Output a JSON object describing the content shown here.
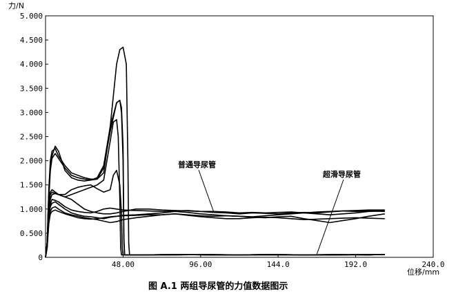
{
  "chart_data": {
    "type": "line",
    "ylabel": "力/N",
    "xlabel": "位移/mm",
    "xlim": [
      0,
      240
    ],
    "ylim": [
      0,
      5
    ],
    "xticks": [
      "48.00",
      "96.00",
      "144.0",
      "192.0",
      "240.0"
    ],
    "yticks": [
      "0",
      "0.500",
      "1.000",
      "1.500",
      "2.000",
      "2.500",
      "3.000",
      "3.500",
      "4.000",
      "4.500",
      "5.000"
    ],
    "annotations": [
      {
        "text": "普通导尿管",
        "target": [
          104,
          0.95
        ]
      },
      {
        "text": "超滑导尿管",
        "target": [
          168,
          0.07
        ]
      }
    ],
    "caption": "图 A.1 两组导尿管的力值数据图示",
    "series": [
      {
        "x": [
          0,
          1,
          2,
          3,
          4,
          6,
          8,
          12,
          16,
          20,
          24,
          28,
          32,
          36,
          40,
          44,
          46,
          48,
          50,
          51,
          51.5,
          52,
          60,
          80,
          100,
          120,
          140,
          160,
          180,
          200,
          210
        ],
        "y": [
          0,
          0.3,
          1.4,
          2.0,
          2.2,
          2.25,
          2.1,
          1.9,
          1.75,
          1.7,
          1.65,
          1.62,
          1.62,
          1.75,
          2.7,
          4.0,
          4.3,
          4.35,
          4.0,
          2.0,
          0.3,
          0.05,
          0.05,
          0.06,
          0.05,
          0.05,
          0.06,
          0.05,
          0.05,
          0.06,
          0.06
        ]
      },
      {
        "x": [
          0,
          1,
          2,
          3,
          4,
          6,
          8,
          12,
          16,
          20,
          24,
          28,
          32,
          36,
          40,
          44,
          46,
          47,
          48,
          48.5,
          49,
          60,
          80,
          100,
          120,
          140,
          160,
          180,
          200,
          210
        ],
        "y": [
          0,
          0.3,
          1.3,
          1.9,
          2.1,
          2.3,
          2.2,
          1.8,
          1.65,
          1.6,
          1.58,
          1.6,
          1.65,
          1.9,
          2.7,
          3.2,
          3.25,
          3.1,
          2.3,
          0.4,
          0.05,
          0.05,
          0.06,
          0.05,
          0.05,
          0.06,
          0.05,
          0.05,
          0.06,
          0.06
        ]
      },
      {
        "x": [
          0,
          1,
          2,
          3,
          4,
          6,
          8,
          12,
          16,
          20,
          24,
          28,
          32,
          36,
          40,
          44,
          46,
          47,
          48,
          48.5,
          49,
          60,
          80,
          100,
          120,
          140,
          160,
          180,
          200,
          210
        ],
        "y": [
          0,
          0.3,
          1.2,
          1.8,
          2.05,
          2.15,
          2.05,
          1.85,
          1.7,
          1.65,
          1.62,
          1.6,
          1.62,
          1.85,
          2.6,
          3.2,
          3.25,
          3.0,
          2.0,
          0.3,
          0.05,
          0.05,
          0.05,
          0.06,
          0.05,
          0.05,
          0.05,
          0.06,
          0.05,
          0.06
        ]
      },
      {
        "x": [
          0,
          1,
          2,
          3,
          4,
          8,
          12,
          16,
          20,
          24,
          28,
          32,
          36,
          40,
          42,
          44,
          45,
          46,
          46.5,
          47,
          60,
          80,
          100,
          120,
          140,
          160,
          180,
          200,
          210
        ],
        "y": [
          0,
          0.3,
          1.1,
          1.35,
          1.4,
          1.3,
          1.25,
          1.3,
          1.35,
          1.4,
          1.45,
          1.5,
          1.6,
          2.4,
          2.8,
          2.85,
          2.5,
          1.2,
          0.2,
          0.05,
          0.05,
          0.05,
          0.06,
          0.05,
          0.05,
          0.05,
          0.06,
          0.05,
          0.06
        ]
      },
      {
        "x": [
          0,
          1,
          2,
          3,
          4,
          8,
          12,
          16,
          20,
          24,
          28,
          32,
          36,
          40,
          42,
          44,
          46,
          47,
          47.5,
          48,
          60,
          80,
          100,
          120,
          140,
          160,
          180,
          200,
          210
        ],
        "y": [
          0,
          0.3,
          1.0,
          1.3,
          1.35,
          1.3,
          1.3,
          1.4,
          1.45,
          1.48,
          1.5,
          1.42,
          1.35,
          1.4,
          1.7,
          1.8,
          1.5,
          0.9,
          0.2,
          0.05,
          0.05,
          0.06,
          0.05,
          0.05,
          0.06,
          0.05,
          0.05,
          0.05,
          0.06
        ]
      },
      {
        "x": [
          0,
          1,
          2,
          3,
          4,
          6,
          8,
          12,
          16,
          20,
          24,
          28,
          32,
          36,
          40,
          44,
          48,
          56,
          64,
          72,
          80,
          88,
          96,
          104,
          112,
          120,
          128,
          136,
          144,
          152,
          160,
          168,
          176,
          184,
          192,
          200,
          210
        ],
        "y": [
          0,
          0.3,
          0.9,
          1.2,
          1.3,
          1.32,
          1.3,
          1.25,
          1.2,
          1.1,
          1.0,
          0.95,
          0.92,
          0.9,
          0.9,
          0.92,
          0.95,
          1.0,
          1.0,
          0.98,
          0.97,
          0.96,
          0.95,
          0.95,
          0.94,
          0.92,
          0.93,
          0.92,
          0.93,
          0.94,
          0.92,
          0.94,
          0.95,
          0.96,
          0.97,
          0.98,
          0.98
        ]
      },
      {
        "x": [
          0,
          1,
          2,
          3,
          4,
          6,
          8,
          12,
          16,
          20,
          24,
          28,
          32,
          36,
          40,
          44,
          48,
          56,
          64,
          72,
          80,
          88,
          96,
          104,
          112,
          120,
          128,
          136,
          144,
          152,
          160,
          168,
          176,
          184,
          192,
          200,
          210
        ],
        "y": [
          0,
          0.3,
          0.9,
          1.1,
          1.2,
          1.18,
          1.15,
          1.05,
          0.98,
          0.95,
          0.93,
          0.92,
          0.95,
          1.0,
          1.02,
          1.0,
          0.98,
          0.97,
          0.96,
          0.95,
          0.96,
          0.97,
          0.95,
          0.93,
          0.92,
          0.9,
          0.92,
          0.91,
          0.9,
          0.92,
          0.93,
          0.92,
          0.94,
          0.96,
          0.95,
          0.96,
          0.95
        ]
      },
      {
        "x": [
          0,
          1,
          2,
          3,
          4,
          6,
          8,
          12,
          16,
          20,
          24,
          28,
          32,
          36,
          40,
          44,
          48,
          56,
          64,
          72,
          80,
          88,
          96,
          104,
          112,
          120,
          128,
          136,
          144,
          152,
          160,
          168,
          176,
          184,
          192,
          200,
          210
        ],
        "y": [
          0,
          0.2,
          0.8,
          1.05,
          1.12,
          1.15,
          1.1,
          1.0,
          0.92,
          0.88,
          0.85,
          0.84,
          0.82,
          0.8,
          0.83,
          0.85,
          0.87,
          0.88,
          0.9,
          0.92,
          0.95,
          0.93,
          0.9,
          0.88,
          0.86,
          0.85,
          0.84,
          0.86,
          0.88,
          0.9,
          0.92,
          0.9,
          0.88,
          0.9,
          0.92,
          0.95,
          0.96
        ]
      },
      {
        "x": [
          0,
          1,
          2,
          3,
          4,
          6,
          8,
          12,
          16,
          20,
          24,
          28,
          32,
          36,
          40,
          44,
          48,
          56,
          64,
          72,
          80,
          88,
          96,
          104,
          112,
          120,
          128,
          136,
          144,
          152,
          160,
          168,
          176,
          184,
          192,
          200,
          210
        ],
        "y": [
          0,
          0.2,
          0.7,
          0.95,
          1.02,
          1.05,
          1.0,
          0.92,
          0.88,
          0.85,
          0.82,
          0.8,
          0.78,
          0.75,
          0.72,
          0.74,
          0.78,
          0.82,
          0.85,
          0.88,
          0.9,
          0.88,
          0.86,
          0.85,
          0.86,
          0.85,
          0.83,
          0.82,
          0.84,
          0.85,
          0.8,
          0.76,
          0.72,
          0.76,
          0.8,
          0.85,
          0.9
        ]
      },
      {
        "x": [
          0,
          1,
          2,
          3,
          4,
          6,
          8,
          12,
          16,
          20,
          24,
          28,
          32,
          36,
          40,
          44,
          48,
          56,
          64,
          72,
          80,
          88,
          96,
          104,
          112,
          120,
          128,
          136,
          144,
          152,
          160,
          168,
          176,
          184,
          192,
          200,
          210
        ],
        "y": [
          0,
          0.2,
          0.7,
          0.9,
          0.95,
          0.98,
          0.95,
          0.9,
          0.86,
          0.82,
          0.8,
          0.79,
          0.8,
          0.82,
          0.84,
          0.85,
          0.86,
          0.87,
          0.88,
          0.88,
          0.9,
          0.87,
          0.84,
          0.82,
          0.8,
          0.8,
          0.82,
          0.83,
          0.82,
          0.8,
          0.78,
          0.79,
          0.8,
          0.81,
          0.82,
          0.81,
          0.8
        ]
      }
    ]
  }
}
